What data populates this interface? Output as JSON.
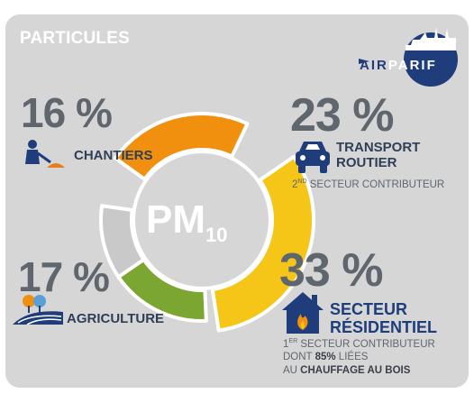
{
  "header": {
    "title": "PARTICULES"
  },
  "logo": {
    "part1": "AIR",
    "part2": "PARIF",
    "circle_color": "#1f3d7a"
  },
  "center": {
    "main": "PM",
    "subscript": "10"
  },
  "chart_data": {
    "type": "pie",
    "style": "donut",
    "title": "PARTICULES",
    "center_label": "PM10",
    "categories": [
      "CHANTIERS",
      "TRANSPORT ROUTIER",
      "SECTEUR RÉSIDENTIEL",
      "AGRICULTURE"
    ],
    "values": [
      16,
      23,
      33,
      17
    ],
    "unit": "%",
    "colors": [
      "#c9c9c9",
      "#f0900e",
      "#f5c518",
      "#7ba632"
    ]
  },
  "segments": {
    "chantiers": {
      "pct": "16 %",
      "label": "CHANTIERS",
      "icon": "worker-digging-icon"
    },
    "transport": {
      "pct": "23 %",
      "label_line1": "TRANSPORT",
      "label_line2": "ROUTIER",
      "note_num": "2",
      "note_sup": "ND",
      "note_text": " SECTEUR CONTRIBUTEUR",
      "icon": "car-icon"
    },
    "residentiel": {
      "pct": "33 %",
      "label_line1": "SECTEUR",
      "label_line2": "RÉSIDENTIEL",
      "note1_num": "1",
      "note1_sup": "ER",
      "note1_text": " SECTEUR CONTRIBUTEUR",
      "note2_a": "DONT ",
      "note2_b": "85%",
      "note2_c": " LIÉES",
      "note3_a": "AU ",
      "note3_b": "CHAUFFAGE AU BOIS",
      "icon": "house-fire-icon"
    },
    "agriculture": {
      "pct": "17 %",
      "label": "AGRICULTURE",
      "icon": "field-trees-icon"
    }
  }
}
